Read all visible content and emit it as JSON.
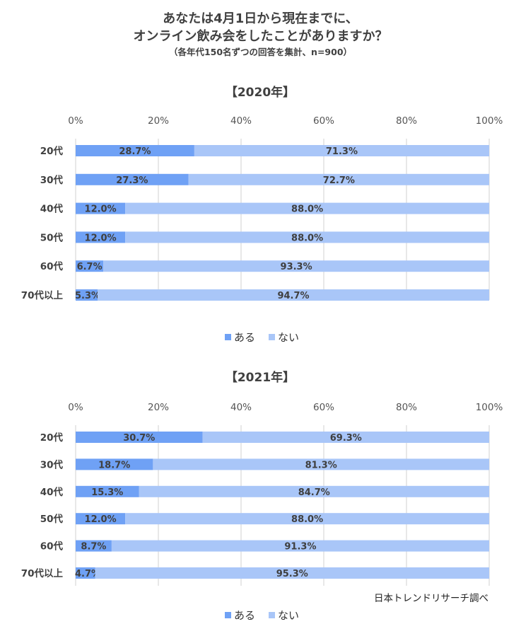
{
  "title": {
    "line1": "あなたは4月1日から現在までに、",
    "line2": "オンライン飲み会をしたことがありますか？",
    "subtitle": "（各年代150名ずつの回答を集計、n=900）"
  },
  "source": "日本トレンドリサーチ調べ",
  "colors": {
    "aru": "#6fa1f5",
    "nai": "#a9c6f8",
    "grid": "#d0d0d0",
    "text": "#404040"
  },
  "chart_data": [
    {
      "type": "bar",
      "orientation": "horizontal",
      "stacked": "percent",
      "title": "【2020年】",
      "categories": [
        "20代",
        "30代",
        "40代",
        "50代",
        "60代",
        "70代以上"
      ],
      "series": [
        {
          "name": "ある",
          "values": [
            28.7,
            27.3,
            12.0,
            12.0,
            6.7,
            5.3
          ],
          "labels": [
            "28.7%",
            "27.3%",
            "12.0%",
            "12.0%",
            "6.7%",
            "5.3%"
          ]
        },
        {
          "name": "ない",
          "values": [
            71.3,
            72.7,
            88.0,
            88.0,
            93.3,
            94.7
          ],
          "labels": [
            "71.3%",
            "72.7%",
            "88.0%",
            "88.0%",
            "93.3%",
            "94.7%"
          ]
        }
      ],
      "xlim": [
        0,
        100
      ],
      "xticks": [
        "0%",
        "20%",
        "40%",
        "60%",
        "80%",
        "100%"
      ],
      "grid": true,
      "legend_position": "bottom"
    },
    {
      "type": "bar",
      "orientation": "horizontal",
      "stacked": "percent",
      "title": "【2021年】",
      "categories": [
        "20代",
        "30代",
        "40代",
        "50代",
        "60代",
        "70代以上"
      ],
      "series": [
        {
          "name": "ある",
          "values": [
            30.7,
            18.7,
            15.3,
            12.0,
            8.7,
            4.7
          ],
          "labels": [
            "30.7%",
            "18.7%",
            "15.3%",
            "12.0%",
            "8.7%",
            "4.7%"
          ]
        },
        {
          "name": "ない",
          "values": [
            69.3,
            81.3,
            84.7,
            88.0,
            91.3,
            95.3
          ],
          "labels": [
            "69.3%",
            "81.3%",
            "84.7%",
            "88.0%",
            "91.3%",
            "95.3%"
          ]
        }
      ],
      "xlim": [
        0,
        100
      ],
      "xticks": [
        "0%",
        "20%",
        "40%",
        "60%",
        "80%",
        "100%"
      ],
      "grid": true,
      "legend_position": "bottom"
    }
  ]
}
